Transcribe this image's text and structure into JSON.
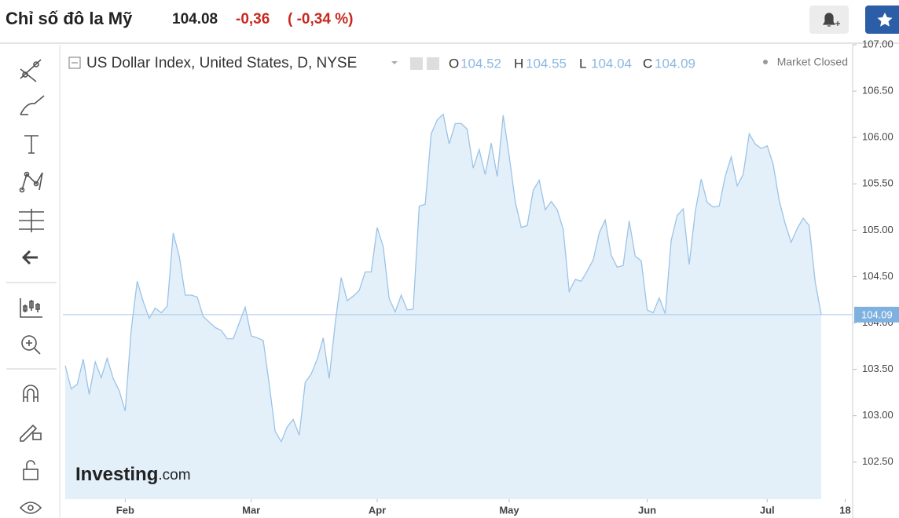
{
  "header": {
    "title": "Chỉ số đô la Mỹ",
    "price": "104.08",
    "change": "-0,36",
    "change_percent": "( -0,34 %)"
  },
  "chart_data": {
    "type": "area",
    "title": "US Dollar Index, United States, D, NYSE",
    "ohlc": [
      {
        "label": "O",
        "value": 104.52
      },
      {
        "label": "H",
        "value": 104.55
      },
      {
        "label": "L",
        "value": 104.04
      },
      {
        "label": "C",
        "value": 104.09
      }
    ],
    "status": "Market Closed",
    "watermark": {
      "brand": "Investing",
      "suffix": ".com"
    },
    "last_value": 104.09,
    "color": "#9cc3e6",
    "fill": "#e3f0fa",
    "categories": [
      null,
      null,
      null,
      null,
      null,
      null,
      null,
      null,
      null,
      null,
      "Feb",
      null,
      null,
      null,
      null,
      null,
      null,
      null,
      null,
      null,
      null,
      null,
      null,
      null,
      null,
      null,
      null,
      null,
      null,
      null,
      null,
      "Mar",
      null,
      null,
      null,
      null,
      null,
      null,
      null,
      null,
      null,
      null,
      null,
      null,
      null,
      null,
      null,
      null,
      null,
      null,
      null,
      null,
      "Apr",
      null,
      null,
      null,
      null,
      null,
      null,
      null,
      null,
      null,
      null,
      null,
      null,
      null,
      null,
      null,
      null,
      null,
      null,
      null,
      null,
      null,
      "May",
      null,
      null,
      null,
      null,
      null,
      null,
      null,
      null,
      null,
      null,
      null,
      null,
      null,
      null,
      null,
      null,
      null,
      null,
      null,
      null,
      null,
      null,
      "Jun",
      null,
      null,
      null,
      null,
      null,
      null,
      null,
      null,
      null,
      null,
      null,
      null,
      null,
      null,
      null,
      null,
      null,
      null,
      null,
      "Jul",
      null,
      null,
      null,
      null,
      null,
      null,
      null,
      null,
      null,
      null,
      null,
      null,
      "18"
    ],
    "values": [
      103.54,
      103.29,
      103.34,
      103.61,
      103.23,
      103.58,
      103.41,
      103.62,
      103.4,
      103.27,
      103.05,
      103.93,
      104.45,
      104.23,
      104.05,
      104.16,
      104.11,
      104.18,
      104.97,
      104.72,
      104.3,
      104.3,
      104.28,
      104.07,
      104.01,
      103.95,
      103.92,
      103.83,
      103.83,
      104.0,
      104.17,
      103.86,
      103.84,
      103.81,
      103.34,
      102.83,
      102.72,
      102.88,
      102.96,
      102.79,
      103.36,
      103.45,
      103.61,
      103.84,
      103.4,
      104.0,
      104.49,
      104.24,
      104.29,
      104.35,
      104.55,
      104.55,
      105.03,
      104.82,
      104.26,
      104.12,
      104.3,
      104.14,
      104.15,
      105.26,
      105.28,
      106.04,
      106.19,
      106.25,
      105.93,
      106.15,
      106.15,
      106.09,
      105.67,
      105.87,
      105.6,
      105.94,
      105.58,
      106.24,
      105.8,
      105.31,
      105.03,
      105.05,
      105.43,
      105.54,
      105.22,
      105.31,
      105.22,
      105.01,
      104.34,
      104.47,
      104.45,
      104.56,
      104.68,
      104.97,
      105.11,
      104.73,
      104.6,
      104.62,
      105.1,
      104.72,
      104.67,
      104.14,
      104.11,
      104.27,
      104.1,
      104.89,
      105.16,
      105.23,
      104.63,
      105.2,
      105.55,
      105.3,
      105.25,
      105.26,
      105.58,
      105.79,
      105.48,
      105.6,
      106.04,
      105.93,
      105.88,
      105.91,
      105.71,
      105.32,
      105.07,
      104.87,
      105.02,
      105.13,
      105.05,
      104.44,
      104.09,
      null,
      null,
      null,
      null
    ],
    "ylim": [
      102.1,
      107
    ],
    "yticks": [
      {
        "value": 102.5,
        "label": "102.50"
      },
      {
        "value": 103,
        "label": "103.00"
      },
      {
        "value": 103.5,
        "label": "103.50"
      },
      {
        "value": 104,
        "label": "104.00"
      },
      {
        "value": 104.5,
        "label": "104.50"
      },
      {
        "value": 105,
        "label": "105.00"
      },
      {
        "value": 105.5,
        "label": "105.50"
      },
      {
        "value": 106,
        "label": "106.00"
      },
      {
        "value": 106.5,
        "label": "106.50"
      },
      {
        "value": 107,
        "label": "107.00"
      }
    ]
  }
}
